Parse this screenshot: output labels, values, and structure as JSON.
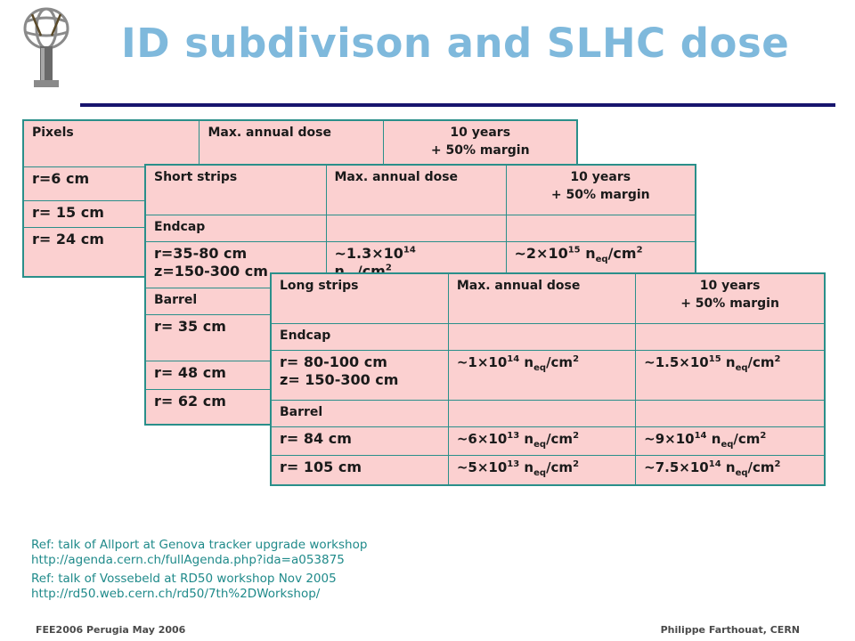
{
  "title": "ID subdivison and SLHC dose",
  "logo": {
    "name": "atlas-logo",
    "color": "#7a7a7a"
  },
  "pixels": {
    "header": [
      "Pixels",
      "Max. annual dose",
      "10 years\n+ 50% margin"
    ],
    "rows": [
      [
        "r=6 cm",
        "",
        ""
      ],
      [
        "r= 15 cm",
        "",
        ""
      ],
      [
        "r= 24 cm",
        "",
        ""
      ]
    ]
  },
  "short_strips": {
    "header": [
      "Short strips",
      "Max. annual dose",
      "10 years\n+ 50% margin"
    ],
    "section_endcap": "Endcap",
    "endcap_pos": "r=35-80 cm\nz=150-300 cm",
    "endcap_dose_base": "~1.3×10",
    "endcap_dose_exp": "14",
    "endcap_10y_base": "~2×10",
    "endcap_10y_exp": "15",
    "section_barrel": "Barrel",
    "barrel_rows": [
      "r= 35 cm",
      "r= 48 cm",
      "r= 62 cm"
    ]
  },
  "long_strips": {
    "header": [
      "Long strips",
      "Max. annual dose",
      "10 years\n+ 50% margin"
    ],
    "section_endcap": "Endcap",
    "endcap_pos": "r= 80-100 cm\nz= 150-300 cm",
    "endcap_dose": {
      "base": "~1×10",
      "exp": "14"
    },
    "endcap_10y": {
      "base": "~1.5×10",
      "exp": "15"
    },
    "section_barrel": "Barrel",
    "barrel_rows": [
      {
        "pos": "r= 84 cm",
        "dose": {
          "base": "~6×10",
          "exp": "13"
        },
        "ten": {
          "base": "~9×10",
          "exp": "14"
        }
      },
      {
        "pos": "r= 105 cm",
        "dose": {
          "base": "~5×10",
          "exp": "13"
        },
        "ten": {
          "base": "~7.5×10",
          "exp": "14"
        }
      }
    ]
  },
  "units": {
    "n": "n",
    "sub": "eq",
    "rest": "/cm",
    "sq": "2"
  },
  "refs": [
    "Ref: talk of Allport at Genova tracker upgrade workshop",
    "http://agenda.cern.ch/fullAgenda.php?ida=a053875",
    "Ref: talk of Vossebeld at RD50 workshop Nov 2005",
    "http://rd50.web.cern.ch/rd50/7th%2DWorkshop/"
  ],
  "footer": {
    "left": "FEE2006 Perugia May 2006",
    "right": "Philippe Farthouat, CERN"
  }
}
